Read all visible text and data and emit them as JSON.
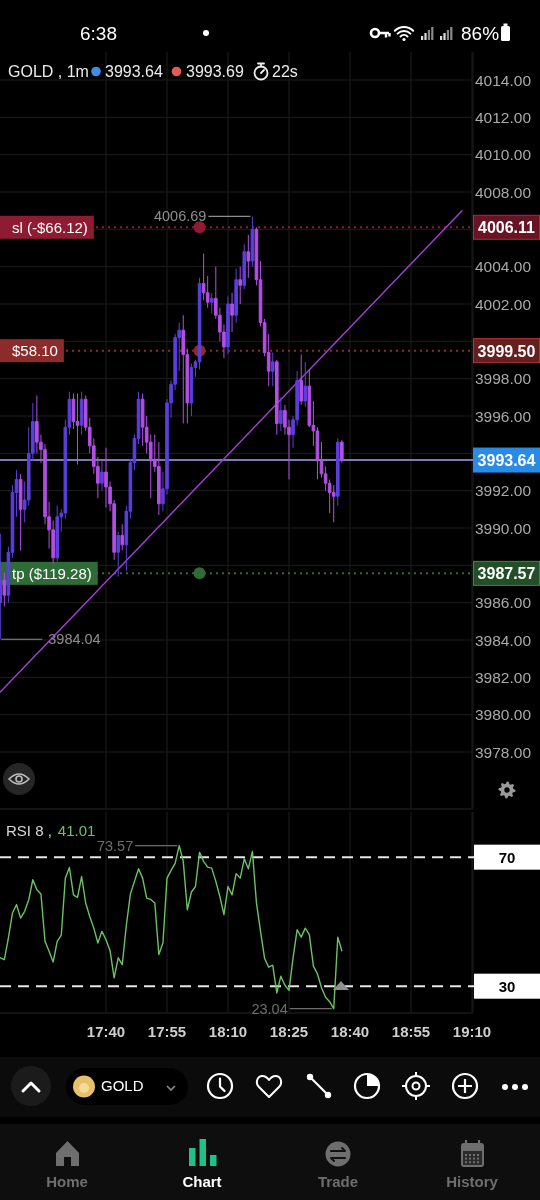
{
  "chart_data": [
    {
      "type": "candlestick",
      "title": "GOLD , 1m",
      "annotations": [
        "6:38",
        "86%",
        "3993.64",
        "3993.69",
        "22s",
        {
          "text": "4006.69",
          "x": 18.2667,
          "y": 4006.69
        },
        {
          "text": "3984.04",
          "x": 17.2333,
          "y": 3984.04
        },
        {
          "text": "sl (-$66.12)",
          "y": 4006.11
        },
        {
          "text": "$58.10",
          "y": 3999.5
        },
        {
          "text": "tp ($119.28)",
          "y": 3987.57
        }
      ],
      "x": [
        17.2333,
        17.25,
        17.2667,
        17.2833,
        17.3,
        17.3167,
        17.3333,
        17.35,
        17.3667,
        17.3833,
        17.4,
        17.4167,
        17.4333,
        17.45,
        17.4667,
        17.4833,
        17.5,
        17.5167,
        17.5333,
        17.55,
        17.5667,
        17.5833,
        17.6,
        17.6167,
        17.6333,
        17.65,
        17.6667,
        17.6833,
        17.7,
        17.7167,
        17.7333,
        17.75,
        17.7667,
        17.7833,
        17.8,
        17.8167,
        17.8333,
        17.85,
        17.8667,
        17.8833,
        17.9,
        17.9167,
        17.9333,
        17.95,
        17.9667,
        17.9833,
        18,
        18.0167,
        18.0333,
        18.05,
        18.0667,
        18.0833,
        18.1,
        18.1167,
        18.1333,
        18.15,
        18.1667,
        18.1833,
        18.2,
        18.2167,
        18.2333,
        18.25,
        18.2667,
        18.2833,
        18.3,
        18.3167,
        18.3333,
        18.35,
        18.3667,
        18.3833,
        18.4,
        18.4167,
        18.4333,
        18.45,
        18.4667,
        18.4833,
        18.5,
        18.5167,
        18.5333,
        18.55,
        18.5667,
        18.5833,
        18.6,
        18.6167,
        18.6333
      ],
      "ohlc": [
        [
          3986.0,
          3989.7,
          3984.04,
          3987.2
        ],
        [
          3987.2,
          3987.6,
          3985.8,
          3986.4
        ],
        [
          3986.4,
          3989.0,
          3986.0,
          3988.7
        ],
        [
          3988.7,
          3992.3,
          3988.4,
          3991.9
        ],
        [
          3991.9,
          3993.1,
          3990.6,
          3992.6
        ],
        [
          3992.6,
          3992.9,
          3988.8,
          3991.0
        ],
        [
          3991.0,
          3992.5,
          3990.3,
          3991.5
        ],
        [
          3991.5,
          3995.4,
          3991.2,
          3994.0
        ],
        [
          3994.0,
          3996.7,
          3993.6,
          3995.7
        ],
        [
          3995.7,
          3997.1,
          3994.0,
          3994.6
        ],
        [
          3994.6,
          3995.0,
          3993.5,
          3994.2
        ],
        [
          3994.2,
          3994.5,
          3990.2,
          3990.6
        ],
        [
          3990.6,
          3991.4,
          3988.9,
          3989.9
        ],
        [
          3989.9,
          3990.4,
          3988.1,
          3988.4
        ],
        [
          3988.4,
          3991.2,
          3988.2,
          3990.6
        ],
        [
          3990.6,
          3991.0,
          3989.8,
          3990.8
        ],
        [
          3990.8,
          3995.8,
          3990.5,
          3995.4
        ],
        [
          3995.4,
          3997.3,
          3995.0,
          3996.9
        ],
        [
          3996.9,
          3997.2,
          3995.3,
          3995.7
        ],
        [
          3995.7,
          3997.2,
          3993.4,
          3995.5
        ],
        [
          3995.5,
          3997.3,
          3995.0,
          3996.9
        ],
        [
          3996.9,
          3997.1,
          3995.2,
          3995.4
        ],
        [
          3995.4,
          3995.9,
          3994.0,
          3994.4
        ],
        [
          3994.4,
          3994.8,
          3992.9,
          3993.3
        ],
        [
          3993.3,
          3993.8,
          3991.6,
          3992.4
        ],
        [
          3992.4,
          3993.6,
          3992.0,
          3993.0
        ],
        [
          3993.0,
          3994.3,
          3991.1,
          3992.2
        ],
        [
          3992.2,
          3992.5,
          3990.9,
          3991.3
        ],
        [
          3991.3,
          3991.5,
          3988.3,
          3988.7
        ],
        [
          3988.7,
          3989.8,
          3987.4,
          3989.6
        ],
        [
          3989.6,
          3990.2,
          3988.8,
          3989.1
        ],
        [
          3989.1,
          3991.2,
          3987.7,
          3990.9
        ],
        [
          3990.9,
          3993.7,
          3990.5,
          3993.5
        ],
        [
          3993.5,
          3995.0,
          3993.1,
          3994.8
        ],
        [
          3994.8,
          3997.3,
          3994.5,
          3996.9
        ],
        [
          3996.9,
          3997.2,
          3994.4,
          3995.4
        ],
        [
          3995.4,
          3996.0,
          3994.0,
          3994.6
        ],
        [
          3994.6,
          3995.0,
          3991.6,
          3993.6
        ],
        [
          3993.6,
          3995.0,
          3993.0,
          3993.3
        ],
        [
          3993.3,
          3994.6,
          3990.7,
          3991.3
        ],
        [
          3991.3,
          3993.0,
          3990.9,
          3992.1
        ],
        [
          3992.1,
          3996.9,
          3991.8,
          3996.7
        ],
        [
          3996.7,
          3997.9,
          3995.9,
          3997.7
        ],
        [
          3997.7,
          4000.4,
          3997.4,
          4000.2
        ],
        [
          4000.2,
          4001.0,
          3998.4,
          4000.6
        ],
        [
          4000.6,
          4001.4,
          3995.6,
          3999.3
        ],
        [
          3999.3,
          3999.6,
          3995.6,
          3996.7
        ],
        [
          3996.7,
          3998.8,
          3996.0,
          3998.6
        ],
        [
          3998.6,
          3999.0,
          3998.1,
          3998.9
        ],
        [
          3998.9,
          4003.4,
          3998.5,
          4003.1
        ],
        [
          4003.1,
          4004.7,
          4002.2,
          4002.6
        ],
        [
          4002.6,
          4003.5,
          4001.8,
          4002.1
        ],
        [
          4002.1,
          4002.6,
          4001.5,
          4002.3
        ],
        [
          4002.3,
          4004.0,
          4001.2,
          4001.4
        ],
        [
          4001.4,
          4001.8,
          4000.0,
          4000.5
        ],
        [
          4000.5,
          4000.9,
          3999.1,
          3999.7
        ],
        [
          3999.7,
          4002.4,
          3999.3,
          4002.0
        ],
        [
          4002.0,
          4002.6,
          4000.5,
          4001.4
        ],
        [
          4001.4,
          4003.9,
          4001.0,
          4003.3
        ],
        [
          4003.3,
          4004.0,
          4002.0,
          4003.0
        ],
        [
          4003.0,
          4005.2,
          4002.8,
          4004.8
        ],
        [
          4004.8,
          4005.7,
          4003.4,
          4004.3
        ],
        [
          4004.3,
          4006.69,
          4004.0,
          4006.0
        ],
        [
          4006.0,
          4006.1,
          4003.0,
          4003.3
        ],
        [
          4003.3,
          4004.3,
          4000.8,
          4001.0
        ],
        [
          4001.0,
          4001.2,
          3999.2,
          3999.4
        ],
        [
          3999.4,
          4000.4,
          3997.6,
          3998.4
        ],
        [
          3998.4,
          3999.4,
          3997.6,
          3998.9
        ],
        [
          3998.9,
          3999.0,
          3995.0,
          3995.6
        ],
        [
          3995.6,
          3997.0,
          3995.2,
          3996.3
        ],
        [
          3996.3,
          3996.6,
          3995.0,
          3995.4
        ],
        [
          3995.4,
          3995.8,
          3992.6,
          3995.0
        ],
        [
          3995.0,
          3996.0,
          3994.3,
          3995.8
        ],
        [
          3995.8,
          3998.4,
          3995.5,
          3997.9
        ],
        [
          3997.9,
          3999.3,
          3996.6,
          3996.8
        ],
        [
          3996.8,
          3998.9,
          3996.5,
          3997.6
        ],
        [
          3997.6,
          3998.5,
          3995.4,
          3995.5
        ],
        [
          3995.5,
          3996.8,
          3994.4,
          3995.2
        ],
        [
          3995.2,
          3995.4,
          3992.6,
          3993.6
        ],
        [
          3993.6,
          3994.6,
          3992.7,
          3992.9
        ],
        [
          3992.9,
          3993.3,
          3992.0,
          3992.4
        ],
        [
          3992.4,
          3992.6,
          3990.8,
          3991.9
        ],
        [
          3991.9,
          3992.3,
          3990.3,
          3991.7
        ],
        [
          3991.7,
          3994.8,
          3991.2,
          3994.6
        ],
        [
          3994.6,
          3994.7,
          3993.5,
          3993.64
        ]
      ],
      "colors": [
        "#5b3fdd",
        "#b24fe4",
        "#5b3fdd",
        "#5b3fdd",
        "#5b3fdd",
        "#b24fe4",
        "#5b3fdd",
        "#5b3fdd",
        "#5b3fdd",
        "#b24fe4",
        "#b24fe4",
        "#b24fe4",
        "#b24fe4",
        "#b24fe4",
        "#5b3fdd",
        "#5b3fdd",
        "#5b3fdd",
        "#5b3fdd",
        "#b24fe4",
        "#b24fe4",
        "#5b3fdd",
        "#b24fe4",
        "#b24fe4",
        "#b24fe4",
        "#b24fe4",
        "#5b3fdd",
        "#b24fe4",
        "#b24fe4",
        "#b24fe4",
        "#5b3fdd",
        "#b24fe4",
        "#5b3fdd",
        "#5b3fdd",
        "#5b3fdd",
        "#5b3fdd",
        "#b24fe4",
        "#b24fe4",
        "#b24fe4",
        "#b24fe4",
        "#b24fe4",
        "#5b3fdd",
        "#5b3fdd",
        "#5b3fdd",
        "#5b3fdd",
        "#5b3fdd",
        "#b24fe4",
        "#b24fe4",
        "#5b3fdd",
        "#5b3fdd",
        "#5b3fdd",
        "#b24fe4",
        "#b24fe4",
        "#5b3fdd",
        "#b24fe4",
        "#b24fe4",
        "#b24fe4",
        "#5b3fdd",
        "#b24fe4",
        "#5b3fdd",
        "#b24fe4",
        "#5b3fdd",
        "#b24fe4",
        "#5b3fdd",
        "#b24fe4",
        "#b24fe4",
        "#b24fe4",
        "#b24fe4",
        "#5b3fdd",
        "#b24fe4",
        "#5b3fdd",
        "#b24fe4",
        "#b24fe4",
        "#5b3fdd",
        "#5b3fdd",
        "#b24fe4",
        "#5b3fdd",
        "#b24fe4",
        "#b24fe4",
        "#b24fe4",
        "#b24fe4",
        "#b24fe4",
        "#b24fe4",
        "#b24fe4",
        "#5b3fdd",
        "#b24fe4"
      ],
      "series": [
        {
          "type": "line",
          "x": [
            17.2322,
            19.1257
          ],
          "values": [
            3981.2,
            4007.0
          ],
          "color": "#a63fd8"
        },
        {
          "type": "scatter",
          "x": [
            18.05,
            18.05,
            18.05
          ],
          "values": [
            4006.11,
            3999.5,
            3987.57
          ],
          "colors": [
            "#8f1b33",
            "#8c2b2b",
            "#2f6b37"
          ],
          "marker": "circle"
        }
      ],
      "ref_lines": [
        {
          "axis": "y",
          "value": 4006.11,
          "label": "4006.11",
          "color": "#8f1b33",
          "line_style": "dotted"
        },
        {
          "axis": "y",
          "value": 3999.5,
          "label": "3999.50",
          "color": "#8c2b2b",
          "line_style": "dotted"
        },
        {
          "axis": "y",
          "value": 3993.64,
          "label": "3993.64",
          "color": "#a9a3ec",
          "line_style": "solid"
        },
        {
          "axis": "y",
          "value": 3987.57,
          "label": "3987.57",
          "color": "#2f6b37",
          "line_style": "dotted"
        }
      ],
      "xlim": [
        17.2322,
        19.1667
      ],
      "xticks": [
        {
          "value": 17.6667,
          "label": null
        },
        {
          "value": 17.9167,
          "label": null
        },
        {
          "value": 18.1667,
          "label": null
        },
        {
          "value": 18.4167,
          "label": null
        },
        {
          "value": 18.6667,
          "label": null
        },
        {
          "value": 18.9167,
          "label": null
        },
        {
          "value": 19.1667,
          "label": null
        }
      ],
      "ylim": [
        3975,
        4015.5
      ],
      "yticks": [
        {
          "value": 4014,
          "label": "4014.00"
        },
        {
          "value": 4012,
          "label": "4012.00"
        },
        {
          "value": 4010,
          "label": "4010.00"
        },
        {
          "value": 4008,
          "label": "4008.00"
        },
        {
          "value": 4006,
          "label": null
        },
        {
          "value": 4004,
          "label": "4004.00"
        },
        {
          "value": 4002,
          "label": "4002.00"
        },
        {
          "value": 4000,
          "label": null
        },
        {
          "value": 3998,
          "label": "3998.00"
        },
        {
          "value": 3996,
          "label": "3996.00"
        },
        {
          "value": 3994,
          "label": null
        },
        {
          "value": 3992,
          "label": "3992.00"
        },
        {
          "value": 3990,
          "label": "3990.00"
        },
        {
          "value": 3988,
          "label": null
        },
        {
          "value": 3986,
          "label": "3986.00"
        },
        {
          "value": 3984,
          "label": "3984.00"
        },
        {
          "value": 3982,
          "label": "3982.00"
        },
        {
          "value": 3980,
          "label": "3980.00"
        },
        {
          "value": 3978,
          "label": "3978.00"
        }
      ],
      "grid": true,
      "tick_labels": "y"
    },
    {
      "type": "line",
      "title": "RSI 8 ,",
      "subtitle": "41.01",
      "annotations": [
        "GOLD",
        "Home",
        "Chart",
        "Trade",
        "History",
        {
          "text": "73.57",
          "x": 17.9667,
          "y": 73.57
        },
        {
          "text": "23.04",
          "x": 18.6,
          "y": 23.04
        }
      ],
      "x": [
        17.2333,
        17.25,
        17.2667,
        17.2833,
        17.3,
        17.3167,
        17.3333,
        17.35,
        17.3667,
        17.3833,
        17.4,
        17.4167,
        17.4333,
        17.45,
        17.4667,
        17.4833,
        17.5,
        17.5167,
        17.5333,
        17.55,
        17.5667,
        17.5833,
        17.6,
        17.6167,
        17.6333,
        17.65,
        17.6667,
        17.6833,
        17.7,
        17.7167,
        17.7333,
        17.75,
        17.7667,
        17.7833,
        17.8,
        17.8167,
        17.8333,
        17.85,
        17.8667,
        17.8833,
        17.9,
        17.9167,
        17.9333,
        17.95,
        17.9667,
        17.9833,
        18,
        18.0167,
        18.0333,
        18.05,
        18.0667,
        18.0833,
        18.1,
        18.1167,
        18.1333,
        18.15,
        18.1667,
        18.1833,
        18.2,
        18.2167,
        18.2333,
        18.25,
        18.2667,
        18.2833,
        18.3,
        18.3167,
        18.3333,
        18.35,
        18.3667,
        18.3833,
        18.4,
        18.4167,
        18.4333,
        18.45,
        18.4667,
        18.4833,
        18.5,
        18.5167,
        18.5333,
        18.55,
        18.5667,
        18.5833,
        18.6,
        18.6167,
        18.6333
      ],
      "values": [
        38.8,
        38.2,
        45.0,
        52.7,
        55.3,
        51.1,
        53.2,
        56.8,
        63.0,
        59.9,
        58.6,
        43.9,
        40.8,
        37.5,
        43.9,
        45.8,
        63.5,
        66.8,
        58.3,
        57.5,
        64.0,
        55.8,
        51.6,
        48.0,
        43.4,
        47.0,
        44.4,
        41.0,
        32.6,
        38.8,
        36.7,
        48.9,
        58.6,
        62.5,
        66.4,
        63.5,
        57.3,
        56.9,
        55.8,
        39.8,
        43.4,
        63.5,
        65.9,
        68.1,
        73.57,
        68.7,
        53.7,
        59.2,
        60.9,
        71.5,
        68.7,
        66.9,
        66.6,
        62.5,
        57.8,
        52.2,
        60.9,
        58.3,
        64.9,
        63.5,
        69.5,
        66.4,
        71.8,
        55.8,
        47.0,
        38.6,
        35.9,
        36.5,
        27.9,
        33.1,
        30.3,
        28.7,
        38.8,
        47.5,
        45.2,
        48.0,
        46.0,
        36.2,
        33.8,
        29.5,
        26.6,
        25.2,
        23.04,
        45.2,
        41.01
      ],
      "color": "#6cc165",
      "ref_lines": [
        {
          "axis": "y",
          "value": 70,
          "color": "#e6e6e6",
          "line_style": "dashed"
        },
        {
          "axis": "y",
          "value": 30,
          "color": "#e6e6e6",
          "line_style": "dashed"
        }
      ],
      "xlim": [
        17.2322,
        19.1667
      ],
      "xticks": [
        {
          "value": 17.6667,
          "label": "17:40"
        },
        {
          "value": 17.9167,
          "label": "17:55"
        },
        {
          "value": 18.1667,
          "label": "18:10"
        },
        {
          "value": 18.4167,
          "label": "18:25"
        },
        {
          "value": 18.6667,
          "label": "18:40"
        },
        {
          "value": 18.9167,
          "label": "18:55"
        },
        {
          "value": 19.1667,
          "label": "19:10"
        }
      ],
      "ylim": [
        22,
        84
      ],
      "yticks": [
        30,
        70
      ],
      "grid": "x"
    }
  ]
}
